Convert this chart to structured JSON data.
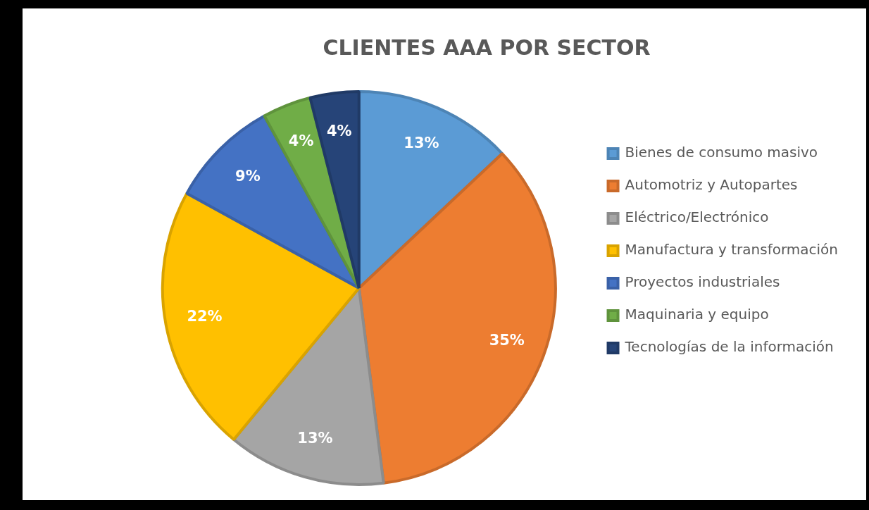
{
  "chart_data": {
    "type": "pie",
    "title": "CLIENTES AAA POR SECTOR",
    "categories": [
      "Bienes de consumo masivo",
      "Automotriz y Autopartes",
      "Eléctrico/Electrónico",
      "Manufactura y transformación",
      "Proyectos industriales",
      "Maquinaria y equipo",
      "Tecnologías de la información"
    ],
    "values": [
      13,
      35,
      13,
      22,
      9,
      4,
      4
    ],
    "colors": [
      "#5b9bd5",
      "#ed7d31",
      "#a5a5a5",
      "#ffc000",
      "#4472c4",
      "#70ad47",
      "#264478"
    ],
    "value_labels": [
      "13%",
      "35%",
      "13%",
      "22%",
      "9%",
      "4%",
      "4%"
    ],
    "legend": "right"
  }
}
